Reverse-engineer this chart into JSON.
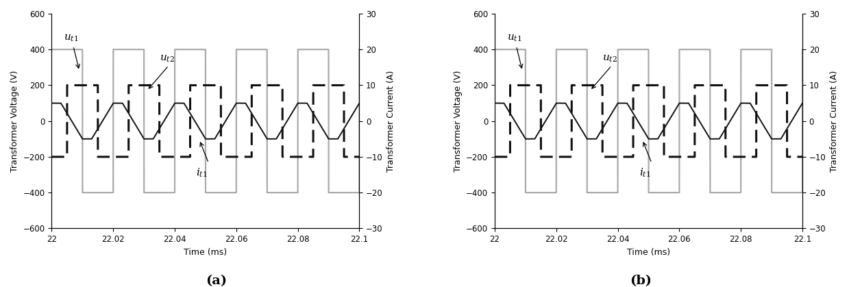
{
  "xlim": [
    22.0,
    22.1
  ],
  "ylim_left": [
    -600,
    600
  ],
  "ylim_right": [
    -30,
    30
  ],
  "yticks_left": [
    -600,
    -400,
    -200,
    0,
    200,
    400,
    600
  ],
  "yticks_right": [
    -30,
    -20,
    -10,
    0,
    10,
    20,
    30
  ],
  "xticks": [
    22.0,
    22.02,
    22.04,
    22.06,
    22.08,
    22.1
  ],
  "xticklabels": [
    "22",
    "22.02",
    "22.04",
    "22.06",
    "22.08",
    "22.1"
  ],
  "xlabel": "Time (ms)",
  "ylabel_left": "Transformer Voltage (V)",
  "ylabel_right": "Transformer Current (A)",
  "period": 0.02,
  "ut1_amp": 400,
  "ut2_amp": 200,
  "it1_amp_V": 100,
  "it1_amp_A": 5,
  "ut1_phase": 22.0,
  "ut2_phase": 22.005,
  "it1_phase": 22.0,
  "panel_labels": [
    "(a)",
    "(b)"
  ],
  "color_ut1": "#aaaaaa",
  "color_ut2": "#111111",
  "color_it1": "#111111",
  "lw_ut1": 1.6,
  "lw_ut2": 2.2,
  "lw_it1": 1.4,
  "dpi": 100,
  "figsize": [
    12.39,
    4.19
  ],
  "font_size_label": 9,
  "font_size_tick": 8.5,
  "font_size_annot": 11,
  "font_size_panel": 14
}
